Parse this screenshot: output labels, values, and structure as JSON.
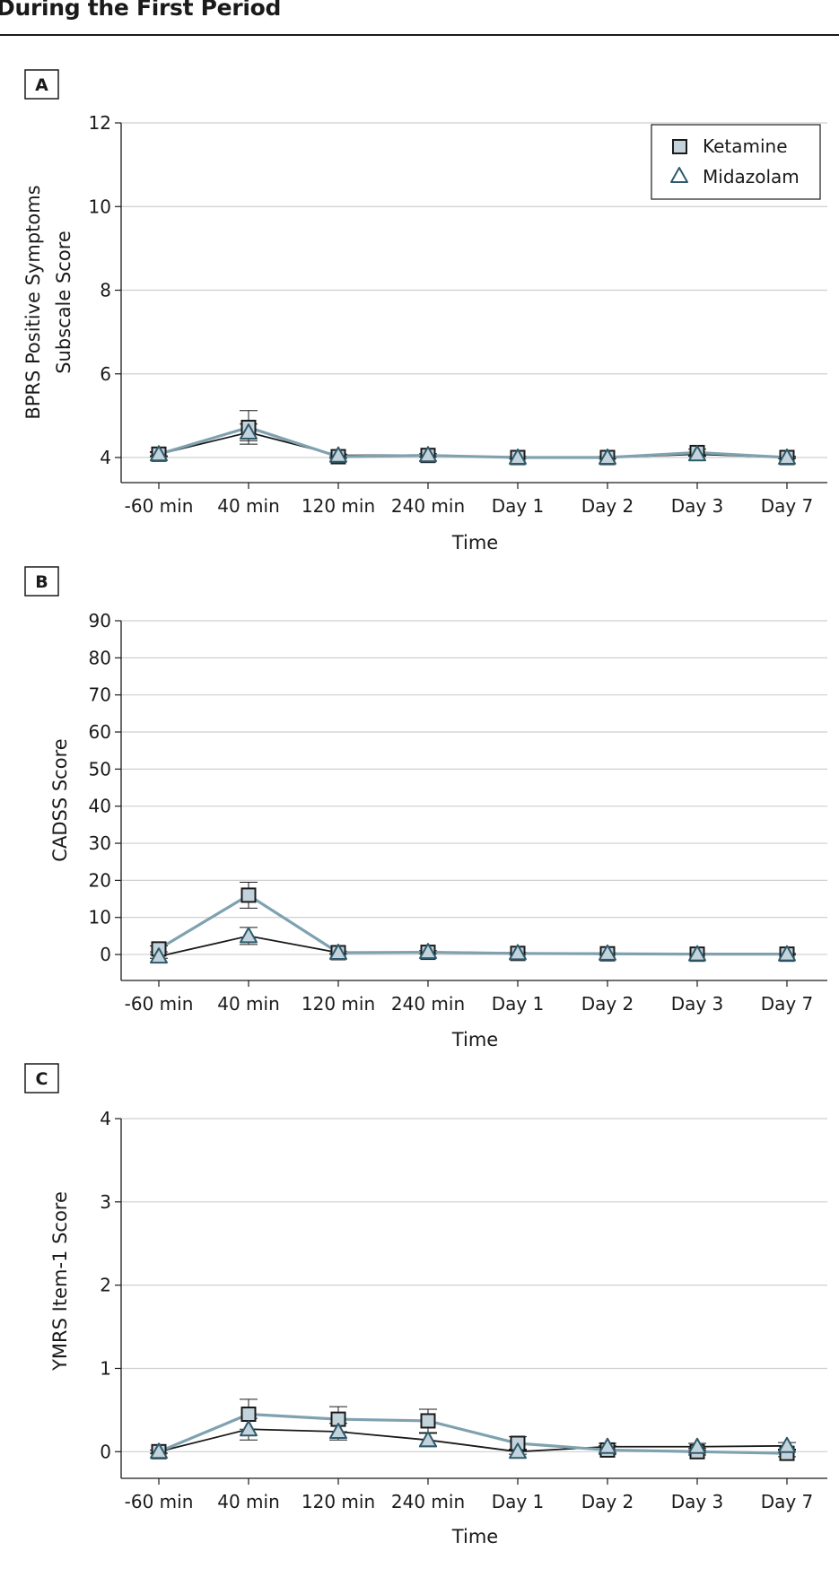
{
  "page": {
    "title": "During the First Period"
  },
  "colors": {
    "ketamine": "#7fa1b0",
    "ketamine_fill": "#c3d3dc",
    "midazolam": "#1a1a1a",
    "midazolam_marker": "#2e5a6b",
    "grid": "#cfcfcf"
  },
  "chart_data": [
    {
      "panel": "A",
      "type": "line",
      "xlabel": "Time",
      "ylabel": [
        "BPRS Positive Symptoms",
        "Subscale Score"
      ],
      "categories": [
        "-60 min",
        "40 min",
        "120 min",
        "240 min",
        "Day 1",
        "Day 2",
        "Day 3",
        "Day 7"
      ],
      "ylim": [
        3.4,
        12
      ],
      "yticks": [
        4,
        6,
        8,
        10,
        12
      ],
      "grid": true,
      "legend": {
        "placement": "top-right",
        "entries": [
          "Ketamine",
          "Midazolam"
        ]
      },
      "series": [
        {
          "name": "Ketamine",
          "values": [
            4.08,
            4.72,
            4.02,
            4.05,
            4.0,
            4.0,
            4.12,
            4.0
          ],
          "error": [
            0.06,
            0.4,
            0.04,
            0.04,
            0.03,
            0.03,
            0.08,
            0.03
          ]
        },
        {
          "name": "Midazolam",
          "values": [
            4.08,
            4.6,
            4.05,
            4.06,
            4.0,
            4.0,
            4.08,
            4.0
          ],
          "error": [
            0.04,
            0.2,
            0.03,
            0.03,
            0.02,
            0.02,
            0.05,
            0.02
          ]
        }
      ]
    },
    {
      "panel": "B",
      "type": "line",
      "xlabel": "Time",
      "ylabel": [
        "CADSS Score"
      ],
      "categories": [
        "-60 min",
        "40 min",
        "120 min",
        "240 min",
        "Day 1",
        "Day 2",
        "Day 3",
        "Day 7"
      ],
      "ylim": [
        -7,
        90
      ],
      "yticks": [
        0,
        10,
        20,
        30,
        40,
        50,
        60,
        70,
        80,
        90
      ],
      "grid": true,
      "series": [
        {
          "name": "Ketamine",
          "values": [
            1.5,
            16,
            0.5,
            0.6,
            0.3,
            0.2,
            0.1,
            0.1
          ],
          "error": [
            0.8,
            3.5,
            0.4,
            0.4,
            0.3,
            0.3,
            0.2,
            0.2
          ]
        },
        {
          "name": "Midazolam",
          "values": [
            -0.5,
            5,
            0.5,
            0.7,
            0.4,
            0.3,
            0.1,
            0.1
          ],
          "error": [
            0.5,
            2.3,
            0.3,
            0.3,
            0.2,
            0.2,
            0.2,
            0.2
          ]
        }
      ]
    },
    {
      "panel": "C",
      "type": "line",
      "xlabel": "Time",
      "ylabel": [
        "YMRS Item-1 Score"
      ],
      "categories": [
        "-60 min",
        "40 min",
        "120 min",
        "240 min",
        "Day 1",
        "Day 2",
        "Day 3",
        "Day 7"
      ],
      "ylim": [
        -0.32,
        4
      ],
      "yticks": [
        0,
        1,
        2,
        3,
        4
      ],
      "grid": true,
      "series": [
        {
          "name": "Ketamine",
          "values": [
            0,
            0.45,
            0.39,
            0.37,
            0.1,
            0.02,
            0.0,
            -0.02
          ],
          "error": [
            0.02,
            0.18,
            0.15,
            0.14,
            0.08,
            0.05,
            0.04,
            0.04
          ]
        },
        {
          "name": "Midazolam",
          "values": [
            0,
            0.27,
            0.24,
            0.14,
            0.0,
            0.06,
            0.06,
            0.07
          ],
          "error": [
            0.02,
            0.13,
            0.1,
            0.08,
            0.03,
            0.04,
            0.04,
            0.04
          ]
        }
      ]
    }
  ]
}
